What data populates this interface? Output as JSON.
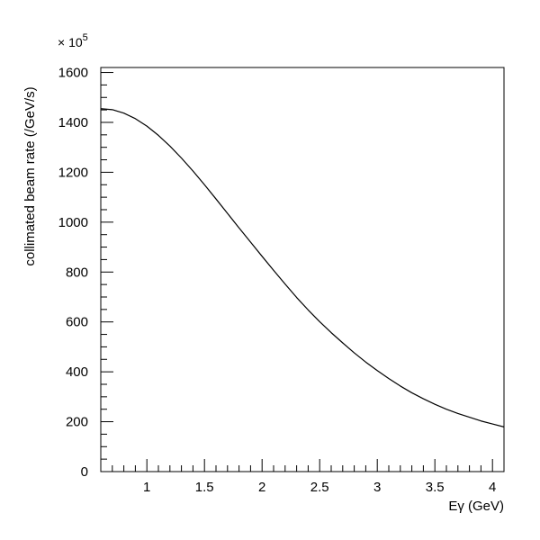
{
  "chart_data": {
    "type": "line",
    "xlabel": "Eγ (GeV)",
    "ylabel": "collimated beam rate (/GeV/s)",
    "y_multiplier": {
      "base": "× 10",
      "exponent": "5"
    },
    "xlim": [
      0.6,
      4.1
    ],
    "ylim": [
      0,
      1620
    ],
    "x_ticks": [
      {
        "value": 1,
        "label": "1"
      },
      {
        "value": 1.5,
        "label": "1.5"
      },
      {
        "value": 2,
        "label": "2"
      },
      {
        "value": 2.5,
        "label": "2.5"
      },
      {
        "value": 3,
        "label": "3"
      },
      {
        "value": 3.5,
        "label": "3.5"
      },
      {
        "value": 4,
        "label": "4"
      }
    ],
    "y_ticks": [
      {
        "value": 0,
        "label": "0"
      },
      {
        "value": 200,
        "label": "200"
      },
      {
        "value": 400,
        "label": "400"
      },
      {
        "value": 600,
        "label": "600"
      },
      {
        "value": 800,
        "label": "800"
      },
      {
        "value": 1000,
        "label": "1000"
      },
      {
        "value": 1200,
        "label": "1200"
      },
      {
        "value": 1400,
        "label": "1400"
      },
      {
        "value": 1600,
        "label": "1600"
      }
    ],
    "x_minor_step": 0.1,
    "y_minor_step": 50,
    "grid": false,
    "series": [
      {
        "color": "#000000",
        "x": [
          0.6,
          0.7,
          0.8,
          0.9,
          1.0,
          1.1,
          1.2,
          1.3,
          1.4,
          1.5,
          1.6,
          1.7,
          1.8,
          1.9,
          2.0,
          2.1,
          2.2,
          2.3,
          2.4,
          2.5,
          2.6,
          2.7,
          2.8,
          2.9,
          3.0,
          3.1,
          3.2,
          3.3,
          3.4,
          3.5,
          3.6,
          3.7,
          3.8,
          3.9,
          4.0,
          4.1
        ],
        "y": [
          1455,
          1451,
          1437,
          1415,
          1385,
          1348,
          1305,
          1257,
          1205,
          1150,
          1093,
          1035,
          977,
          920,
          863,
          807,
          752,
          698,
          648,
          601,
          557,
          516,
          476,
          439,
          405,
          373,
          343,
          316,
          292,
          270,
          250,
          233,
          218,
          203,
          191,
          179
        ]
      }
    ]
  }
}
